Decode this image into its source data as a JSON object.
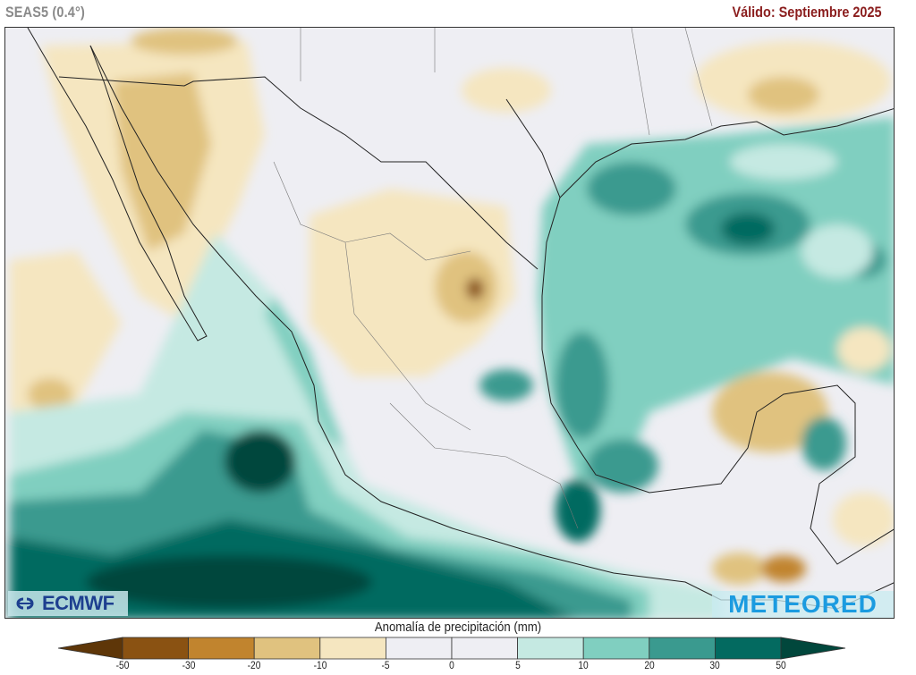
{
  "header": {
    "model_label": "SEAS5 (0.4°)",
    "valid_label": "Válido: Septiembre 2025"
  },
  "map": {
    "variable": "precipitation anomaly",
    "region": "Mexico, Gulf of Mexico, Central America",
    "logos": {
      "left": "ECMWF",
      "right": "METEORED"
    }
  },
  "legend": {
    "title": "Anomalía de precipitación (mm)",
    "ticks": [
      "-50",
      "-30",
      "-20",
      "-10",
      "-5",
      "0",
      "5",
      "10",
      "20",
      "30",
      "50"
    ],
    "colors": {
      "below_-50": "#5e3608",
      "-50_-30": "#8a5212",
      "-30_-20": "#c1842e",
      "-20_-10": "#e0c27f",
      "-10_-5": "#f5e6c0",
      "-5_0": "#eeeef3",
      "0_5": "#eeeef3",
      "5_10": "#c5e9e2",
      "10_20": "#80cfc0",
      "20_30": "#3a9a8f",
      "30_50": "#036a60",
      "above_50": "#01473c"
    }
  }
}
